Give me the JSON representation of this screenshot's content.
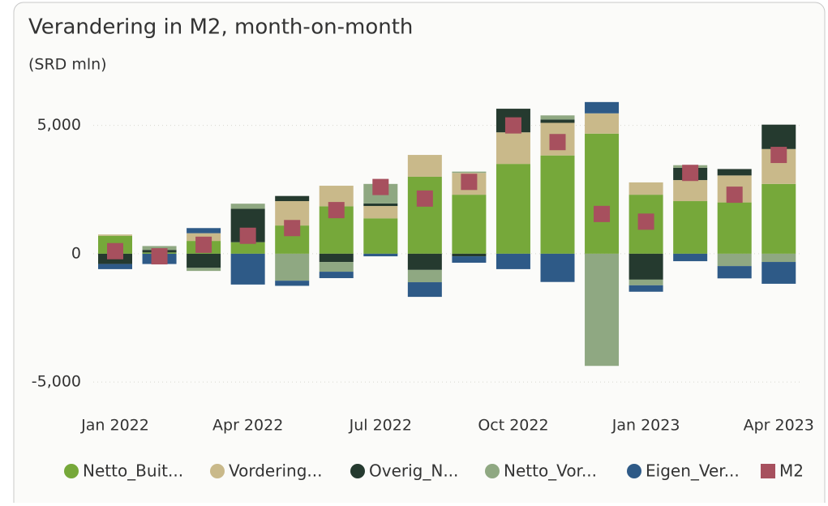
{
  "chart_data": {
    "type": "bar",
    "stacked": true,
    "title": "Verandering in M2, month-on-month",
    "subtitle": "(SRD mln)",
    "categories": [
      "Jan 2022",
      null,
      null,
      "Apr 2022",
      null,
      null,
      "Jul 2022",
      null,
      null,
      "Oct 2022",
      null,
      null,
      "Jan 2023",
      null,
      null,
      "Apr 2023"
    ],
    "series": [
      {
        "name": "Netto_Buit...",
        "color": "#76a83a",
        "values": [
          700,
          50,
          500,
          450,
          1100,
          1850,
          1380,
          3000,
          2300,
          3500,
          3830,
          4680,
          2300,
          2050,
          2000,
          2720
        ]
      },
      {
        "name": "Vordering...",
        "color": "#c9b98a",
        "values": [
          50,
          0,
          300,
          0,
          950,
          800,
          480,
          850,
          850,
          1230,
          1270,
          790,
          480,
          820,
          1050,
          1360
        ]
      },
      {
        "name": "Overig_N...",
        "color": "#253a2f",
        "values": [
          -400,
          100,
          -550,
          1300,
          200,
          -320,
          100,
          -630,
          -100,
          920,
          130,
          0,
          -1010,
          480,
          250,
          950
        ]
      },
      {
        "name": "Netto_Vor...",
        "color": "#8fa882",
        "values": [
          0,
          150,
          -120,
          200,
          -1050,
          -380,
          760,
          -480,
          50,
          0,
          160,
          -4370,
          -220,
          100,
          -480,
          -320
        ]
      },
      {
        "name": "Eigen_Ver...",
        "color": "#2e5a87",
        "values": [
          -200,
          -400,
          200,
          -1200,
          -200,
          -250,
          -100,
          -570,
          -250,
          -600,
          -1100,
          440,
          -250,
          -290,
          -480,
          -850
        ]
      }
    ],
    "m2": {
      "name": "M2",
      "color": "#a7505e",
      "values": [
        100,
        -100,
        350,
        700,
        1000,
        1700,
        2600,
        2150,
        2800,
        5000,
        4350,
        1550,
        1250,
        3150,
        2300,
        3850
      ]
    },
    "ylim": [
      -5500,
      6000
    ],
    "yticks": [
      {
        "value": 5000,
        "label": "5,000"
      },
      0,
      {
        "value": -5000,
        "label": "-5,000"
      }
    ],
    "grid": true
  }
}
